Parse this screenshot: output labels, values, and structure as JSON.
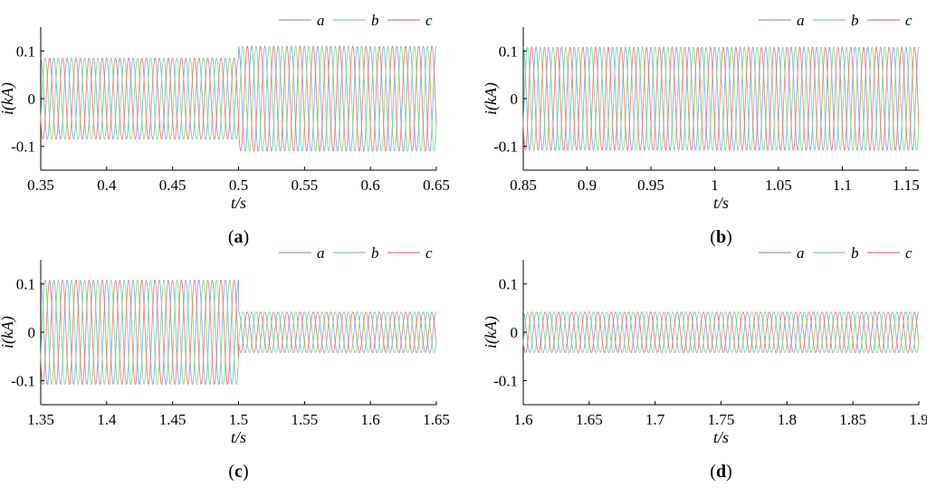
{
  "chart_data": [
    {
      "type": "line",
      "panel": "a",
      "caption": "(a)",
      "xlabel": "t/s",
      "ylabel": "i(kA)",
      "xlim": [
        0.35,
        0.65
      ],
      "ylim": [
        -0.15,
        0.15
      ],
      "xticks": [
        "0.35",
        "0.4",
        "0.45",
        "0.5",
        "0.55",
        "0.6",
        "0.65"
      ],
      "yticks": [
        "0.1",
        "0",
        "-0.1"
      ],
      "frequency_hz": 100,
      "series": [
        {
          "name": "a",
          "color": "#6fa8dc",
          "phase_deg": 90
        },
        {
          "name": "b",
          "color": "#7bd67b",
          "phase_deg": -30
        },
        {
          "name": "c",
          "color": "#f26d6d",
          "phase_deg": 210
        }
      ],
      "amplitude_segments": [
        {
          "t_start": 0.35,
          "t_end": 0.5,
          "amplitude": 0.085
        },
        {
          "t_start": 0.5,
          "t_end": 0.65,
          "amplitude": 0.11
        }
      ]
    },
    {
      "type": "line",
      "panel": "b",
      "caption": "(b)",
      "xlabel": "t/s",
      "ylabel": "i(kA)",
      "xlim": [
        0.85,
        1.16
      ],
      "ylim": [
        -0.15,
        0.15
      ],
      "xticks": [
        "0.85",
        "0.9",
        "0.95",
        "1",
        "1.05",
        "1.1",
        "1.15"
      ],
      "yticks": [
        "0.1",
        "0",
        "-0.1"
      ],
      "frequency_hz": 100,
      "series": [
        {
          "name": "a",
          "color": "#6fa8dc",
          "phase_deg": 90
        },
        {
          "name": "b",
          "color": "#7bd67b",
          "phase_deg": -30
        },
        {
          "name": "c",
          "color": "#f26d6d",
          "phase_deg": 210
        }
      ],
      "amplitude_segments": [
        {
          "t_start": 0.85,
          "t_end": 1.16,
          "amplitude": 0.108
        }
      ]
    },
    {
      "type": "line",
      "panel": "c",
      "caption": "(c)",
      "xlabel": "t/s",
      "ylabel": "i(kA)",
      "xlim": [
        1.35,
        1.65
      ],
      "ylim": [
        -0.15,
        0.15
      ],
      "xticks": [
        "1.35",
        "1.4",
        "1.45",
        "1.5",
        "1.55",
        "1.6",
        "1.65"
      ],
      "yticks": [
        "0.1",
        "0",
        "-0.1"
      ],
      "frequency_hz": 100,
      "series": [
        {
          "name": "a",
          "color": "#6fa8dc",
          "phase_deg": 90
        },
        {
          "name": "b",
          "color": "#7bd67b",
          "phase_deg": -30
        },
        {
          "name": "c",
          "color": "#f26d6d",
          "phase_deg": 210
        }
      ],
      "amplitude_segments": [
        {
          "t_start": 1.35,
          "t_end": 1.5,
          "amplitude": 0.108
        },
        {
          "t_start": 1.5,
          "t_end": 1.65,
          "amplitude": 0.042
        }
      ]
    },
    {
      "type": "line",
      "panel": "d",
      "caption": "(d)",
      "xlabel": "t/s",
      "ylabel": "i(kA)",
      "xlim": [
        1.6,
        1.9
      ],
      "ylim": [
        -0.15,
        0.15
      ],
      "xticks": [
        "1.6",
        "1.65",
        "1.7",
        "1.75",
        "1.8",
        "1.85",
        "1.9"
      ],
      "yticks": [
        "0.1",
        "0",
        "-0.1"
      ],
      "frequency_hz": 100,
      "series": [
        {
          "name": "a",
          "color": "#6fa8dc",
          "phase_deg": 90
        },
        {
          "name": "b",
          "color": "#7bd67b",
          "phase_deg": -30
        },
        {
          "name": "c",
          "color": "#f26d6d",
          "phase_deg": 210
        }
      ],
      "amplitude_segments": [
        {
          "t_start": 1.6,
          "t_end": 1.9,
          "amplitude": 0.042
        }
      ]
    }
  ]
}
